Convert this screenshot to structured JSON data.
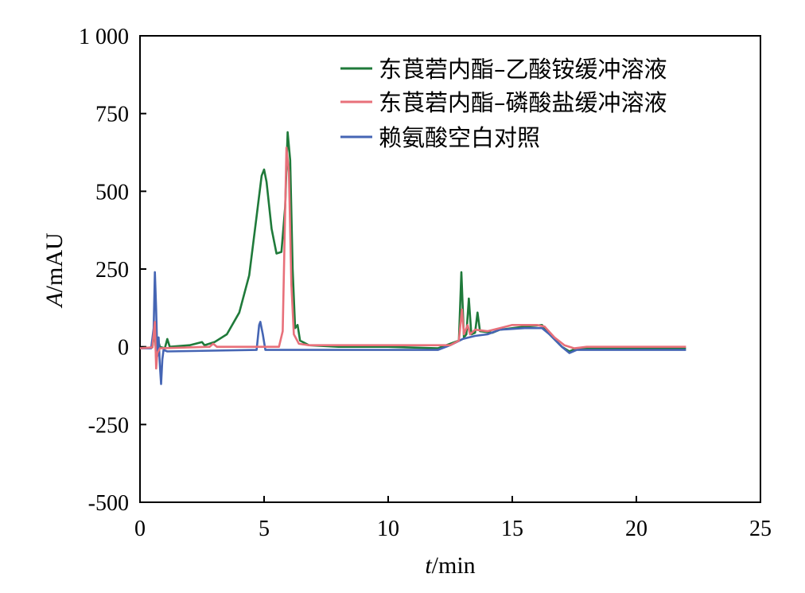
{
  "chart_data": {
    "type": "line",
    "xlabel": {
      "var": "t",
      "unit": "/min"
    },
    "ylabel": {
      "var": "A",
      "unit": "/mAU"
    },
    "xlim": [
      0,
      25
    ],
    "ylim": [
      -500,
      1000
    ],
    "xticks": [
      0,
      5,
      10,
      15,
      20,
      25
    ],
    "xtick_labels": [
      "0",
      "5",
      "10",
      "15",
      "20",
      "25"
    ],
    "yticks": [
      -500,
      -250,
      0,
      250,
      500,
      750,
      1000
    ],
    "ytick_labels": [
      "-500",
      "-250",
      "0",
      "250",
      "500",
      "750",
      "1 000"
    ],
    "grid": false,
    "legend_position": "top-right",
    "series": [
      {
        "name": "东莨菪内酯–乙酸铵缓冲溶液",
        "color": "#1f7a3a",
        "points": [
          [
            0.0,
            -5
          ],
          [
            0.5,
            -2
          ],
          [
            0.6,
            60
          ],
          [
            0.65,
            -40
          ],
          [
            0.7,
            30
          ],
          [
            0.8,
            0
          ],
          [
            1.0,
            -5
          ],
          [
            1.1,
            25
          ],
          [
            1.2,
            0
          ],
          [
            2.0,
            5
          ],
          [
            2.5,
            15
          ],
          [
            2.6,
            5
          ],
          [
            3.0,
            15
          ],
          [
            3.5,
            40
          ],
          [
            4.0,
            110
          ],
          [
            4.4,
            230
          ],
          [
            4.7,
            420
          ],
          [
            4.9,
            550
          ],
          [
            5.0,
            570
          ],
          [
            5.1,
            530
          ],
          [
            5.3,
            380
          ],
          [
            5.5,
            300
          ],
          [
            5.7,
            305
          ],
          [
            5.85,
            450
          ],
          [
            5.95,
            690
          ],
          [
            6.05,
            600
          ],
          [
            6.15,
            250
          ],
          [
            6.25,
            60
          ],
          [
            6.35,
            70
          ],
          [
            6.45,
            20
          ],
          [
            6.8,
            5
          ],
          [
            8,
            0
          ],
          [
            10,
            0
          ],
          [
            12,
            -5
          ],
          [
            12.5,
            10
          ],
          [
            12.85,
            20
          ],
          [
            12.95,
            240
          ],
          [
            13.05,
            30
          ],
          [
            13.15,
            40
          ],
          [
            13.25,
            155
          ],
          [
            13.35,
            40
          ],
          [
            13.5,
            45
          ],
          [
            13.6,
            110
          ],
          [
            13.7,
            50
          ],
          [
            14.2,
            45
          ],
          [
            14.5,
            55
          ],
          [
            15.5,
            65
          ],
          [
            16.2,
            70
          ],
          [
            16.5,
            40
          ],
          [
            17.0,
            0
          ],
          [
            17.3,
            -15
          ],
          [
            17.6,
            -5
          ],
          [
            18,
            -5
          ],
          [
            20,
            -5
          ],
          [
            22,
            -5
          ]
        ]
      },
      {
        "name": "东莨菪内酯–磷酸盐缓冲溶液",
        "color": "#e8707a",
        "points": [
          [
            0.0,
            -5
          ],
          [
            0.5,
            -2
          ],
          [
            0.6,
            80
          ],
          [
            0.65,
            -70
          ],
          [
            0.7,
            -20
          ],
          [
            0.8,
            -5
          ],
          [
            2.8,
            0
          ],
          [
            2.95,
            10
          ],
          [
            3.1,
            0
          ],
          [
            5.6,
            0
          ],
          [
            5.75,
            50
          ],
          [
            5.9,
            640
          ],
          [
            6.0,
            560
          ],
          [
            6.1,
            200
          ],
          [
            6.2,
            40
          ],
          [
            6.4,
            10
          ],
          [
            6.8,
            5
          ],
          [
            10,
            5
          ],
          [
            12.5,
            5
          ],
          [
            12.85,
            20
          ],
          [
            12.97,
            120
          ],
          [
            13.05,
            40
          ],
          [
            13.2,
            70
          ],
          [
            13.3,
            40
          ],
          [
            13.5,
            55
          ],
          [
            14.0,
            50
          ],
          [
            15.0,
            70
          ],
          [
            16.0,
            70
          ],
          [
            16.3,
            65
          ],
          [
            16.7,
            30
          ],
          [
            17.1,
            5
          ],
          [
            17.5,
            -5
          ],
          [
            18.0,
            0
          ],
          [
            20,
            0
          ],
          [
            22,
            0
          ]
        ]
      },
      {
        "name": "赖氨酸空白对照",
        "color": "#4565b4",
        "points": [
          [
            0.0,
            -5
          ],
          [
            0.45,
            -5
          ],
          [
            0.55,
            60
          ],
          [
            0.6,
            240
          ],
          [
            0.65,
            120
          ],
          [
            0.7,
            -30
          ],
          [
            0.75,
            30
          ],
          [
            0.8,
            -60
          ],
          [
            0.85,
            -120
          ],
          [
            0.9,
            -40
          ],
          [
            0.95,
            -10
          ],
          [
            1.1,
            -15
          ],
          [
            4.7,
            -10
          ],
          [
            4.8,
            70
          ],
          [
            4.85,
            80
          ],
          [
            4.95,
            40
          ],
          [
            5.05,
            -10
          ],
          [
            6,
            -10
          ],
          [
            10,
            -10
          ],
          [
            12,
            -10
          ],
          [
            12.5,
            5
          ],
          [
            13,
            25
          ],
          [
            13.5,
            35
          ],
          [
            14.0,
            40
          ],
          [
            14.5,
            55
          ],
          [
            15.5,
            60
          ],
          [
            16.2,
            60
          ],
          [
            16.5,
            40
          ],
          [
            17.0,
            0
          ],
          [
            17.3,
            -20
          ],
          [
            17.6,
            -10
          ],
          [
            18,
            -10
          ],
          [
            20,
            -10
          ],
          [
            22,
            -10
          ]
        ]
      }
    ]
  }
}
